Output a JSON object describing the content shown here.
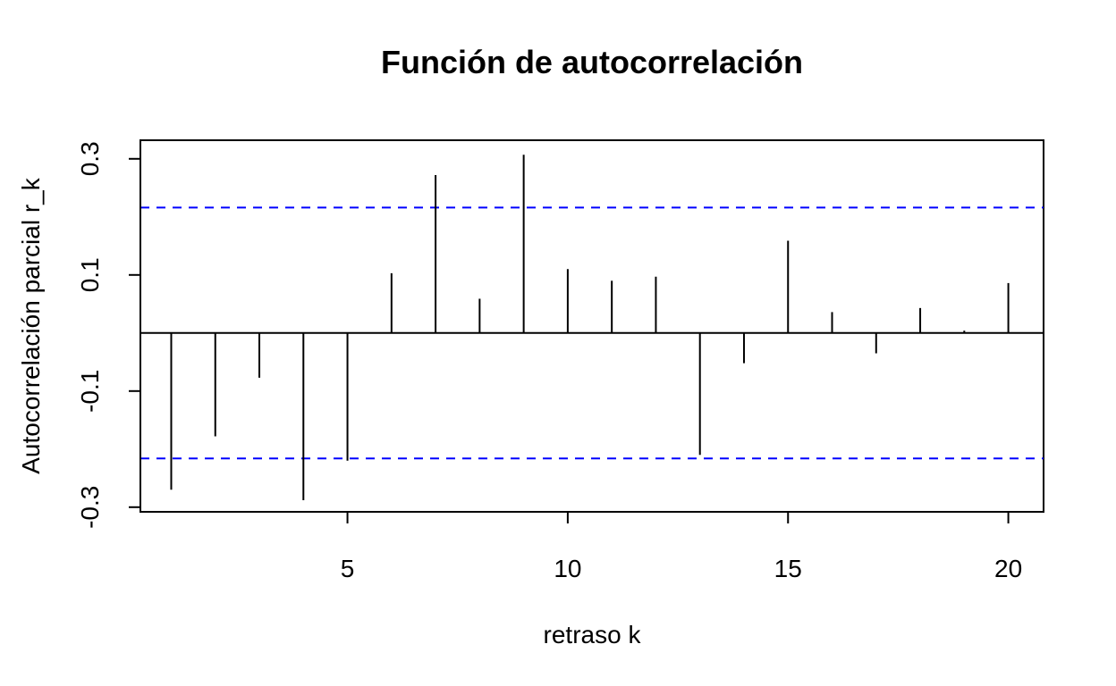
{
  "chart_data": {
    "type": "bar",
    "title": "Función de autocorrelación",
    "xlabel": "retraso k",
    "ylabel": "Autocorrelación parcial r_k",
    "x": [
      1,
      2,
      3,
      4,
      5,
      6,
      7,
      8,
      9,
      10,
      11,
      12,
      13,
      14,
      15,
      16,
      17,
      18,
      19,
      20
    ],
    "values": [
      -0.27,
      -0.178,
      -0.077,
      -0.288,
      -0.22,
      0.103,
      0.272,
      0.059,
      0.307,
      0.11,
      0.09,
      0.097,
      -0.21,
      -0.052,
      0.159,
      0.036,
      -0.035,
      0.043,
      0.004,
      0.086
    ],
    "confidence_limits": [
      0.216,
      -0.216
    ],
    "xlim": [
      0.3,
      20.8
    ],
    "ylim": [
      -0.308,
      0.332
    ],
    "x_ticks": [
      5,
      10,
      15,
      20
    ],
    "x_tick_labels": [
      "5",
      "10",
      "15",
      "20"
    ],
    "y_ticks": [
      -0.3,
      -0.1,
      0.1,
      0.3
    ],
    "y_tick_labels": [
      "-0.3",
      "-0.1",
      "0.1",
      "0.3"
    ],
    "grid": false,
    "legend": "none",
    "colors": {
      "spikes": "#000000",
      "zero_line": "#000000",
      "confidence_lines": "#0000ff",
      "axes": "#000000"
    }
  }
}
